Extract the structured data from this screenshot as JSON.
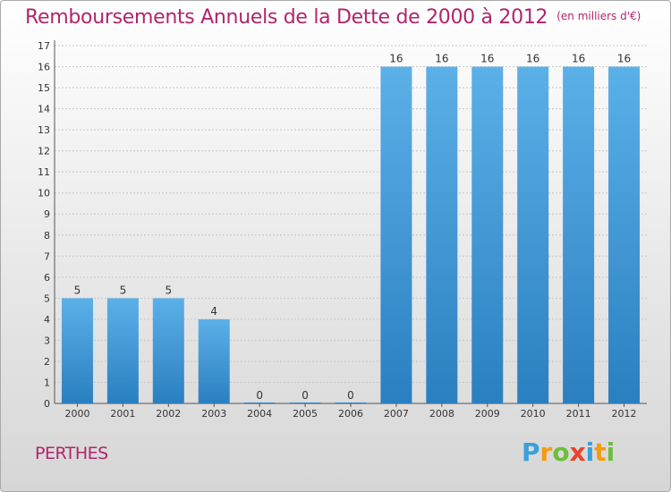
{
  "title": "Remboursements Annuels de la Dette de 2000 à 2012",
  "unit": "(en milliers d'€)",
  "commune": "PERTHES",
  "logo": "Proxiti",
  "colors": {
    "bar": "#3d97d6",
    "bar_light": "#5aaee6",
    "bar_dark": "#2a7fc0",
    "title": "#b0256c"
  },
  "chart_data": {
    "type": "bar",
    "title": "Remboursements Annuels de la Dette de 2000 à 2012",
    "subtitle": "(en milliers d'€)",
    "categories": [
      "2000",
      "2001",
      "2002",
      "2003",
      "2004",
      "2005",
      "2006",
      "2007",
      "2008",
      "2009",
      "2010",
      "2011",
      "2012"
    ],
    "values": [
      5,
      5,
      5,
      4,
      0,
      0,
      0,
      16,
      16,
      16,
      16,
      16,
      16
    ],
    "ylim": [
      0,
      17
    ],
    "yticks": [
      0,
      1,
      2,
      3,
      4,
      5,
      6,
      7,
      8,
      9,
      10,
      11,
      12,
      13,
      14,
      15,
      16,
      17
    ],
    "grid": true,
    "data_labels": true
  }
}
